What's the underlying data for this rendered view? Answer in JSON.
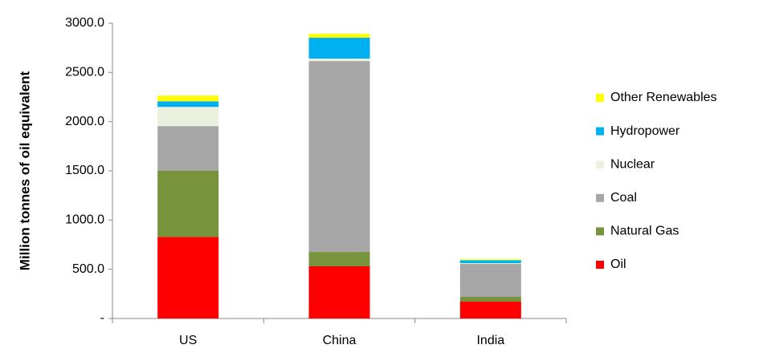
{
  "chart_data": {
    "type": "stacked_bar",
    "y_label": "Million tonnes of oil equivalent",
    "categories": [
      "US",
      "China",
      "India"
    ],
    "series": [
      {
        "name": "Oil",
        "color": "#ff0000",
        "values": [
          830,
          530,
          171
        ]
      },
      {
        "name": "Natural Gas",
        "color": "#77933c",
        "values": [
          670,
          146,
          49
        ]
      },
      {
        "name": "Coal",
        "color": "#a6a6a6",
        "values": [
          455,
          1940,
          334
        ]
      },
      {
        "name": "Nuclear",
        "color": "#ebf1de",
        "values": [
          195,
          25,
          8
        ]
      },
      {
        "name": "Hydropower",
        "color": "#00b0f0",
        "values": [
          57,
          212,
          30
        ]
      },
      {
        "name": "Other Renewables",
        "color": "#ffff00",
        "values": [
          58,
          40,
          10
        ]
      }
    ],
    "ylim": [
      0,
      3000
    ],
    "yticks": [
      {
        "value": 0,
        "label": "-"
      },
      {
        "value": 500,
        "label": "500.0"
      },
      {
        "value": 1000,
        "label": "1000.0"
      },
      {
        "value": 1500,
        "label": "1500.0"
      },
      {
        "value": 2000,
        "label": "2000.0"
      },
      {
        "value": 2500,
        "label": "2500.0"
      },
      {
        "value": 3000,
        "label": "3000.0"
      }
    ],
    "legend": "right"
  }
}
